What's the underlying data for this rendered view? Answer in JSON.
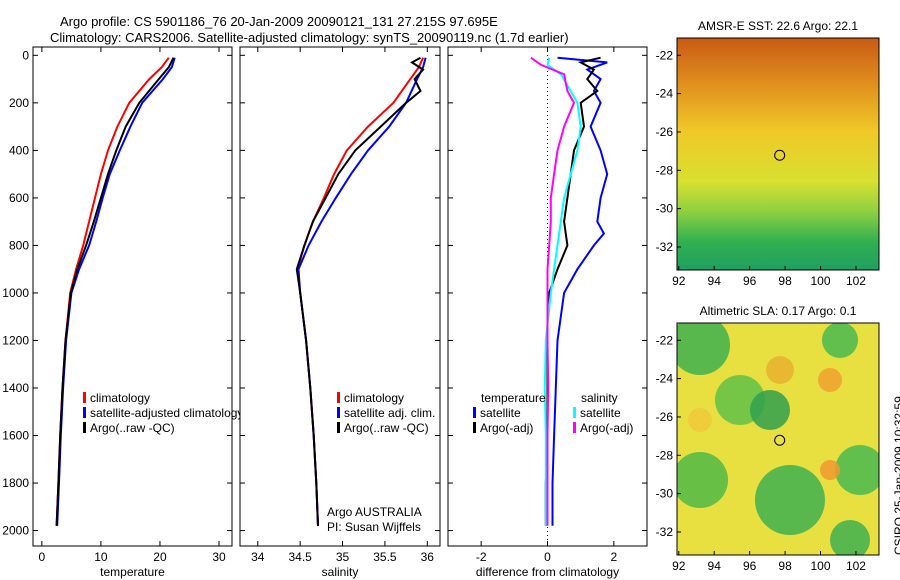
{
  "title_line1": "Argo profile: CS 5901186_76 20-Jan-2009 20090121_131 27.215S 97.695E",
  "title_line2": "Climatology: CARS2006. Satellite-adjusted climatology: synTS_20090119.nc (1.7d earlier)",
  "side_label": "CSIRO 25-Jan-2009 10:32:59",
  "colors": {
    "climatology": "#ff0000",
    "satellite": "#0000ff",
    "argo": "#000000",
    "sal_satellite": "#00ffff",
    "sal_argo": "#ff00ff"
  },
  "chart_data": [
    {
      "type": "line",
      "xlabel": "temperature",
      "ylabel": "",
      "xlim": [
        -1.5,
        32.2
      ],
      "ylim": [
        2065,
        -35
      ],
      "xticks": [
        "0",
        "10",
        "20",
        "30"
      ],
      "xtick_values": [
        0,
        10,
        20,
        30
      ],
      "yticks": [
        "0",
        "200",
        "400",
        "600",
        "800",
        "1000",
        "1200",
        "1400",
        "1600",
        "1800",
        "2000"
      ],
      "legend": [
        "climatology",
        "satellite-adjusted climatology",
        "Argo(..raw -QC)"
      ],
      "series": [
        {
          "name": "climatology",
          "color": "#ff0000",
          "depth": [
            10,
            50,
            100,
            200,
            300,
            400,
            500,
            600,
            700,
            800,
            900,
            1000,
            1200,
            1400,
            1600,
            1800,
            1980
          ],
          "values": [
            21.5,
            20.3,
            18.2,
            14.8,
            12.8,
            11.2,
            10,
            9,
            8,
            7.0,
            5.8,
            4.8,
            4.0,
            3.5,
            3.1,
            2.8,
            2.5
          ]
        },
        {
          "name": "satellite-adjusted climatology",
          "color": "#0000ff",
          "depth": [
            10,
            50,
            100,
            200,
            300,
            400,
            500,
            600,
            700,
            800,
            900,
            1000,
            1200,
            1400,
            1600,
            1800,
            1980
          ],
          "values": [
            22.5,
            22,
            20.5,
            17,
            15,
            13.2,
            11.5,
            10.3,
            9.2,
            8.0,
            6.3,
            5.0,
            4.1,
            3.6,
            3.2,
            2.9,
            2.6
          ]
        },
        {
          "name": "Argo(..raw -QC)",
          "color": "#000000",
          "depth": [
            10,
            50,
            100,
            200,
            300,
            400,
            500,
            600,
            700,
            800,
            900,
            1000,
            1200,
            1400,
            1600,
            1800,
            1980
          ],
          "values": [
            22.3,
            21.5,
            19.8,
            16.5,
            14.2,
            12.6,
            11.2,
            10,
            8.8,
            7.5,
            6.0,
            4.9,
            4.0,
            3.5,
            3.1,
            2.8,
            2.5
          ]
        }
      ]
    },
    {
      "type": "line",
      "xlabel": "salinity",
      "xlim": [
        33.79,
        36.15
      ],
      "ylim": [
        2065,
        -35
      ],
      "xticks": [
        "34",
        "34.5",
        "35",
        "35.5",
        "36"
      ],
      "xtick_values": [
        34,
        34.5,
        35,
        35.5,
        36
      ],
      "legend": [
        "climatology",
        "satellite adj. clim.",
        "Argo(..raw -QC)"
      ],
      "annotation": [
        "Argo AUSTRALIA",
        "PI: Susan Wijffels"
      ],
      "series": [
        {
          "name": "climatology",
          "color": "#ff0000",
          "depth": [
            10,
            50,
            100,
            200,
            300,
            400,
            500,
            600,
            700,
            800,
            900,
            1000,
            1200,
            1400,
            1600,
            1800,
            1980
          ],
          "values": [
            35.95,
            35.9,
            35.8,
            35.6,
            35.3,
            35.05,
            34.9,
            34.78,
            34.65,
            34.55,
            34.47,
            34.5,
            34.57,
            34.62,
            34.66,
            34.69,
            34.71
          ]
        },
        {
          "name": "satellite adj. clim.",
          "color": "#0000ff",
          "depth": [
            10,
            50,
            100,
            200,
            300,
            400,
            500,
            600,
            700,
            800,
            900,
            1000,
            1200,
            1400,
            1600,
            1800,
            1980
          ],
          "values": [
            35.98,
            35.95,
            35.88,
            35.75,
            35.55,
            35.3,
            35.1,
            34.92,
            34.75,
            34.6,
            34.48,
            34.5,
            34.57,
            34.62,
            34.66,
            34.69,
            34.71
          ]
        },
        {
          "name": "Argo(..raw -QC)",
          "color": "#000000",
          "depth": [
            10,
            30,
            60,
            100,
            150,
            200,
            300,
            400,
            500,
            600,
            700,
            800,
            900,
            1000,
            1200,
            1400,
            1600,
            1800,
            1980
          ],
          "values": [
            35.92,
            35.82,
            35.95,
            35.85,
            35.92,
            35.75,
            35.45,
            35.15,
            34.95,
            34.8,
            34.65,
            34.55,
            34.46,
            34.5,
            34.57,
            34.62,
            34.66,
            34.69,
            34.71
          ]
        }
      ]
    },
    {
      "type": "line",
      "xlabel": "difference from climatology",
      "xlim": [
        -3,
        3
      ],
      "ylim": [
        2065,
        -35
      ],
      "xticks": [
        "-2",
        "0",
        "2"
      ],
      "xtick_values": [
        -2,
        0,
        2
      ],
      "legend_temperature": {
        "title": "temperature",
        "items": [
          "satellite",
          "Argo(-adj)"
        ]
      },
      "legend_salinity": {
        "title": "salinity",
        "items": [
          "satellite",
          "Argo(-adj)"
        ]
      },
      "series": [
        {
          "name": "temperature satellite",
          "color": "#0000ff",
          "depth": [
            10,
            30,
            60,
            100,
            150,
            200,
            300,
            400,
            500,
            600,
            700,
            750,
            800,
            900,
            1000,
            1200,
            1400,
            1600,
            1800,
            1980
          ],
          "values": [
            0.3,
            1.8,
            1.2,
            1.6,
            1.4,
            1.6,
            1.3,
            1.6,
            1.8,
            1.6,
            1.5,
            1.7,
            1.4,
            0.9,
            0.5,
            0.3,
            0.25,
            0.2,
            0.15,
            0.15
          ]
        },
        {
          "name": "temperature Argo(-adj)",
          "color": "#000000",
          "depth": [
            10,
            30,
            60,
            100,
            150,
            200,
            300,
            400,
            500,
            600,
            700,
            800,
            900,
            1000,
            1100,
            1200,
            1400,
            1600,
            1800,
            1980
          ],
          "values": [
            1.6,
            1.0,
            1.4,
            1.2,
            1.5,
            1.0,
            1.1,
            0.8,
            0.7,
            0.6,
            0.5,
            0.6,
            0.3,
            0.05,
            0,
            0.0,
            0.0,
            0.0,
            -0.05,
            -0.05
          ]
        },
        {
          "name": "salinity satellite",
          "color": "#00ffff",
          "depth": [
            10,
            40,
            80,
            150,
            200,
            300,
            400,
            500,
            600,
            700,
            800,
            900,
            1000,
            1200,
            1400,
            1600,
            1800,
            1980
          ],
          "values": [
            0.05,
            0.0,
            0.4,
            0.7,
            0.9,
            1.0,
            0.9,
            0.7,
            0.5,
            0.4,
            0.3,
            0.2,
            0.1,
            -0.05,
            -0.08,
            -0.05,
            -0.05,
            -0.05
          ]
        },
        {
          "name": "salinity Argo(-adj)",
          "color": "#ff00ff",
          "depth": [
            10,
            40,
            80,
            150,
            200,
            300,
            400,
            500,
            600,
            700,
            800,
            900,
            1000,
            1200,
            1400,
            1600,
            1800,
            1980
          ],
          "values": [
            -0.5,
            -0.2,
            0.5,
            0.6,
            0.8,
            0.5,
            0.3,
            0.2,
            0.1,
            0.1,
            0.05,
            0.0,
            0.0,
            0.0,
            0.02,
            0.0,
            0.0,
            0.0
          ]
        }
      ]
    },
    {
      "type": "heatmap",
      "title": "AMSR-E SST: 22.6 Argo: 22.1",
      "xlim": [
        91.9,
        103.3
      ],
      "ylim": [
        -33.2,
        -21.1
      ],
      "xticks": [
        "92",
        "94",
        "96",
        "98",
        "100",
        "102"
      ],
      "yticks": [
        "-22",
        "-24",
        "-26",
        "-28",
        "-30",
        "-32"
      ],
      "marker": {
        "lon": 97.695,
        "lat": -27.215
      }
    },
    {
      "type": "heatmap",
      "title": "Altimetric SLA: 0.17 Argo: 0.1",
      "xlim": [
        91.9,
        103.3
      ],
      "ylim": [
        -33.2,
        -21.1
      ],
      "xticks": [
        "92",
        "94",
        "96",
        "98",
        "100",
        "102"
      ],
      "yticks": [
        "-22",
        "-24",
        "-26",
        "-28",
        "-30",
        "-32"
      ],
      "marker": {
        "lon": 97.695,
        "lat": -27.215
      }
    }
  ]
}
